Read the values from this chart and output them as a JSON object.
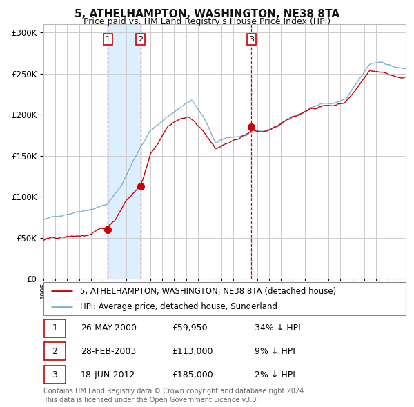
{
  "title": "5, ATHELHAMPTON, WASHINGTON, NE38 8TA",
  "subtitle": "Price paid vs. HM Land Registry's House Price Index (HPI)",
  "sale_prices": [
    59950,
    113000,
    185000
  ],
  "sale_labels": [
    "1",
    "2",
    "3"
  ],
  "sale_hpi_pct": [
    "34% ↓ HPI",
    "9% ↓ HPI",
    "2% ↓ HPI"
  ],
  "sale_dates_display": [
    "26-MAY-2000",
    "28-FEB-2003",
    "18-JUN-2012"
  ],
  "sale_prices_display": [
    "£59,950",
    "£113,000",
    "£185,000"
  ],
  "sale_year_vals": [
    2000.417,
    2003.167,
    2012.5
  ],
  "legend_house": "5, ATHELHAMPTON, WASHINGTON, NE38 8TA (detached house)",
  "legend_hpi": "HPI: Average price, detached house, Sunderland",
  "footer1": "Contains HM Land Registry data © Crown copyright and database right 2024.",
  "footer2": "This data is licensed under the Open Government Licence v3.0.",
  "hpi_color": "#7bafd4",
  "house_color": "#cc0000",
  "marker_color": "#cc0000",
  "vline_color": "#cc0000",
  "shade_color": "#ddeeff",
  "grid_color": "#cccccc",
  "bg_color": "#ffffff",
  "ylim": [
    0,
    310000
  ],
  "yticks": [
    0,
    50000,
    100000,
    150000,
    200000,
    250000,
    300000
  ],
  "xlim": [
    1995,
    2025.5
  ],
  "start_year": 1995,
  "end_year": 2025
}
